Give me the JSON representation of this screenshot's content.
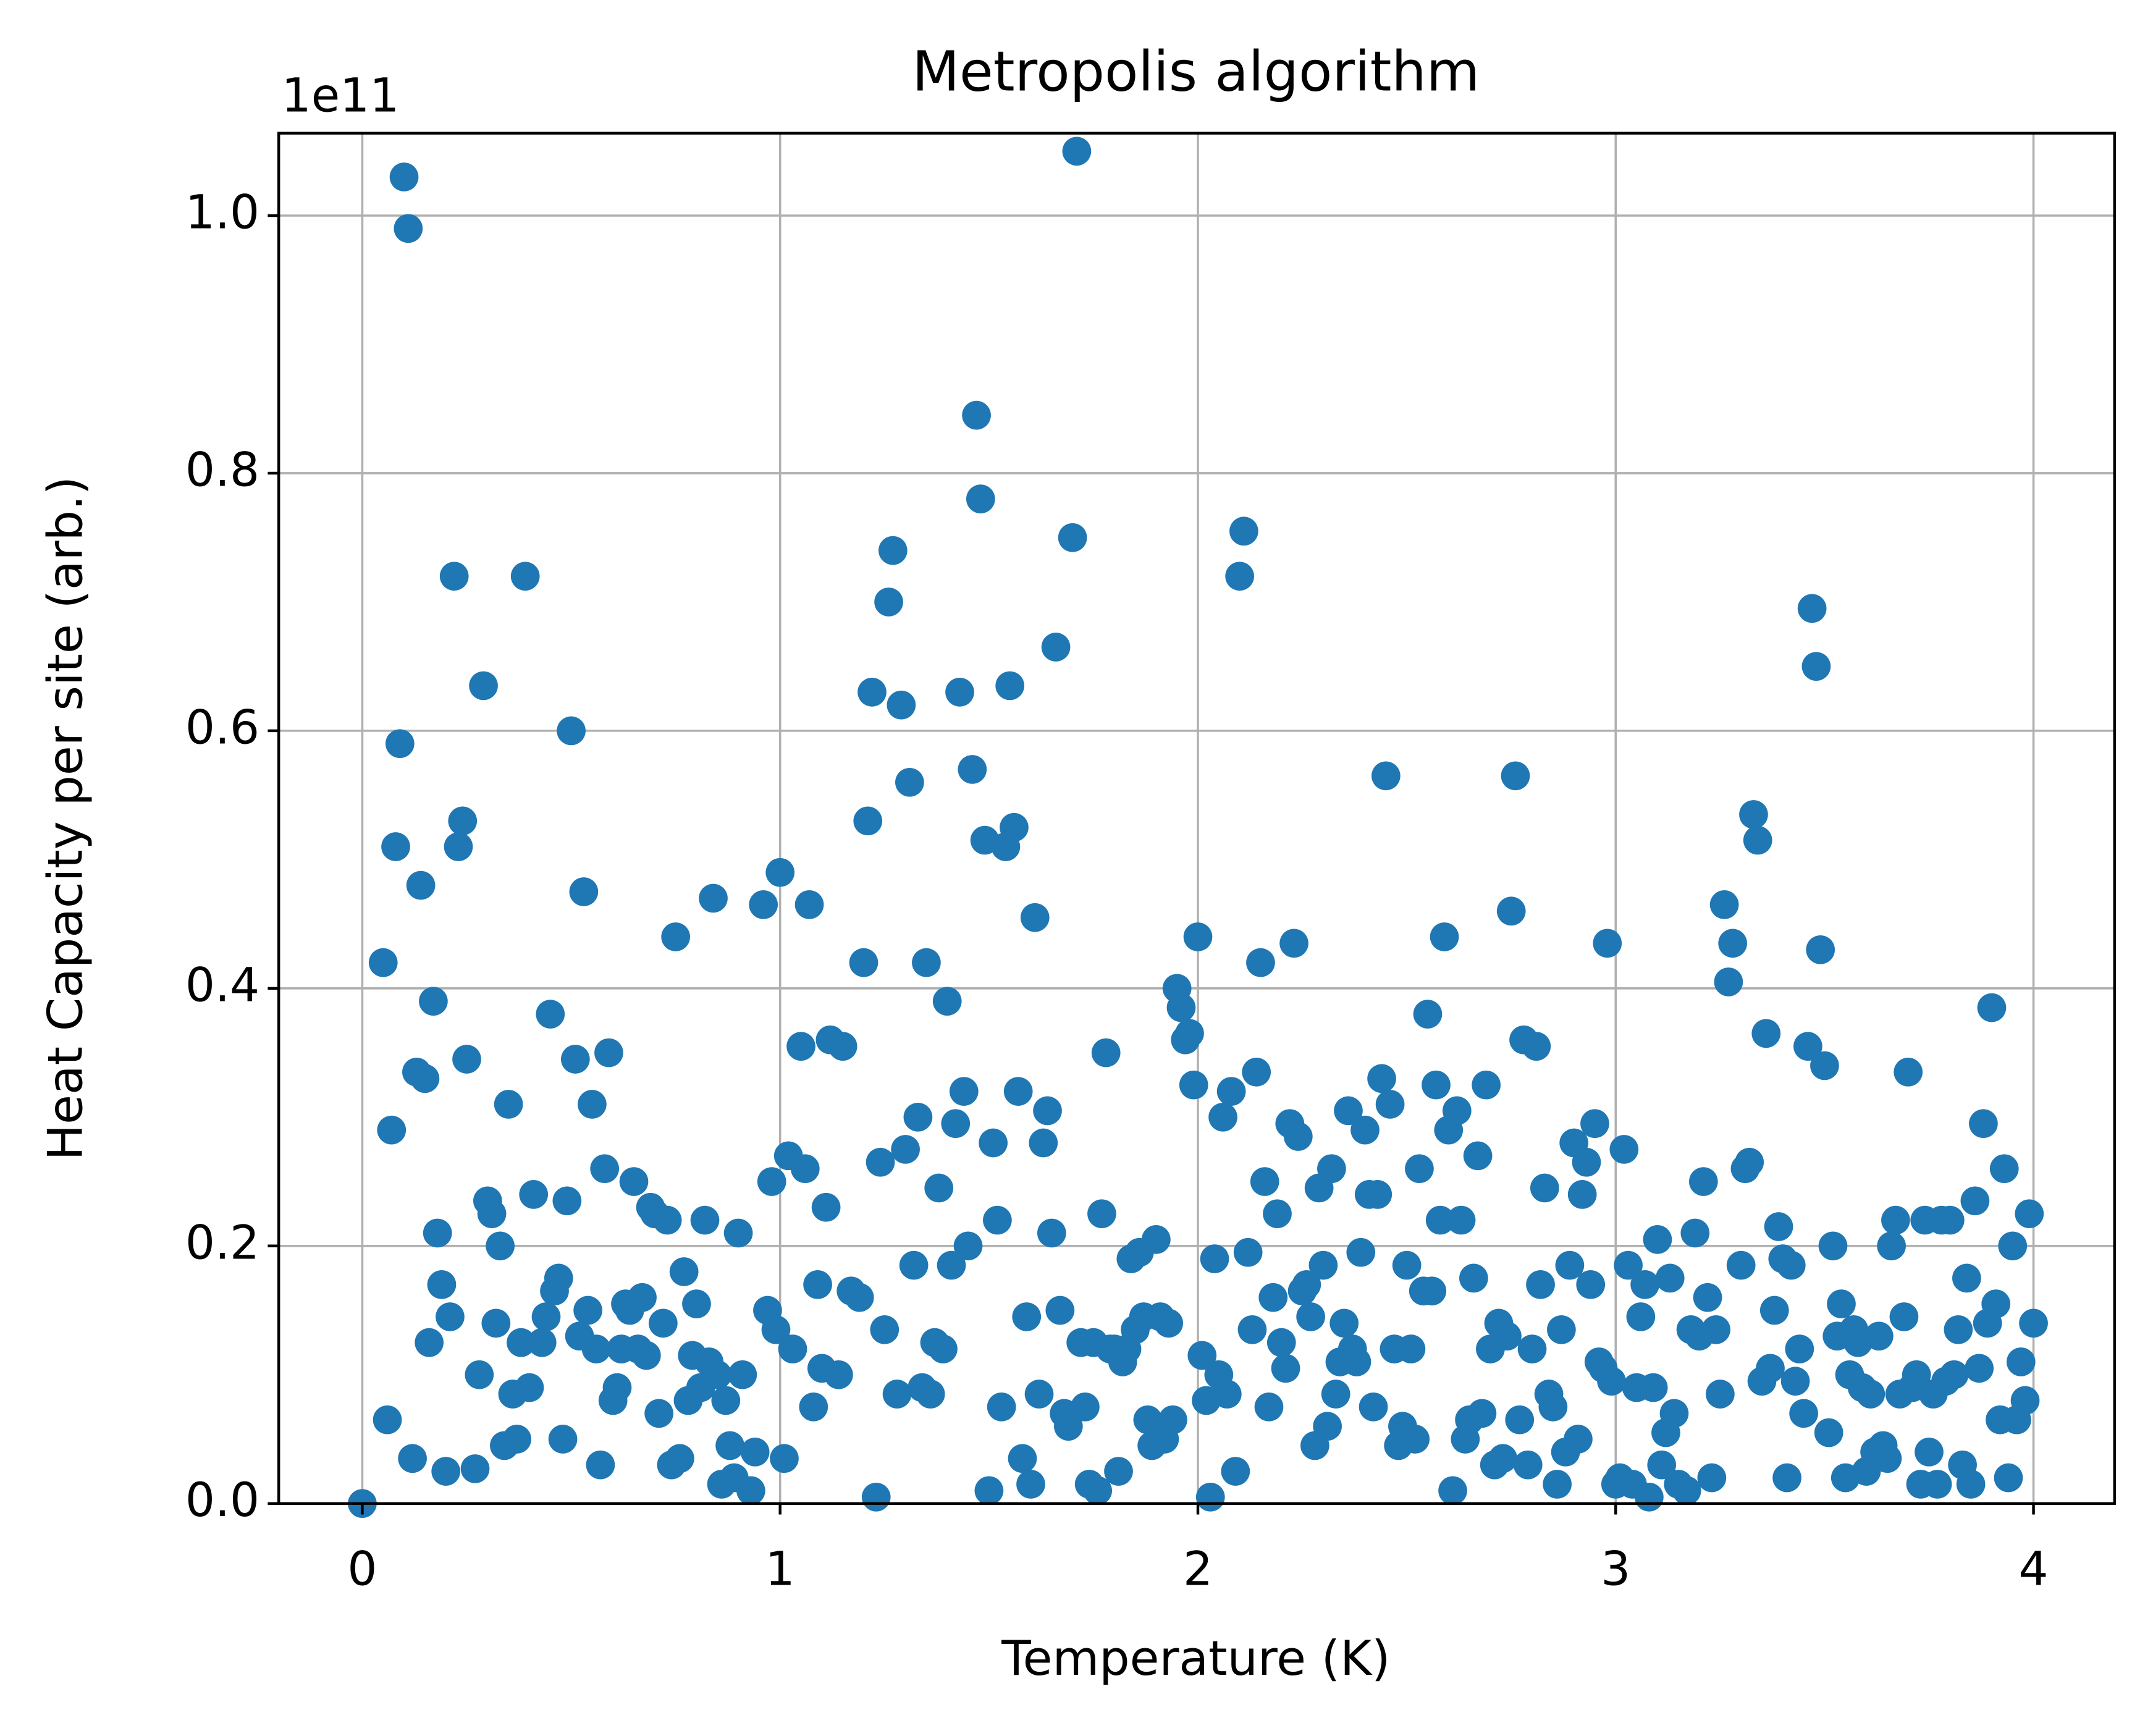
{
  "chart_data": {
    "type": "scatter",
    "title": "Metropolis algorithm",
    "x_label": "Temperature (K)",
    "y_label": "Heat Capacity per site (arb.)",
    "y_offset_label": "1e11",
    "color": "#1f77b4",
    "grid": true,
    "xlim": [
      -0.2,
      4.194
    ],
    "ylim": [
      0,
      1.064
    ],
    "xticks": [
      0,
      1,
      2,
      3,
      4
    ],
    "yticks": [
      {
        "value": 0,
        "label": "0.0"
      },
      0.2,
      0.4,
      0.6,
      0.8,
      {
        "value": 1,
        "label": "1.0"
      }
    ],
    "x": [
      0,
      0.05,
      0.06,
      0.07,
      0.08,
      0.09,
      0.1,
      0.11,
      0.12,
      0.13,
      0.14,
      0.15,
      0.16,
      0.17,
      0.18,
      0.19,
      0.2,
      0.21,
      0.22,
      0.23,
      0.24,
      0.25,
      0.27,
      0.28,
      0.29,
      0.3,
      0.31,
      0.32,
      0.33,
      0.34,
      0.35,
      0.36,
      0.37,
      0.38,
      0.39,
      0.4,
      0.41,
      0.43,
      0.44,
      0.45,
      0.46,
      0.47,
      0.48,
      0.49,
      0.5,
      0.51,
      0.52,
      0.53,
      0.54,
      0.55,
      0.56,
      0.57,
      0.58,
      0.59,
      0.6,
      0.61,
      0.62,
      0.63,
      0.64,
      0.65,
      0.66,
      0.67,
      0.68,
      0.69,
      0.7,
      0.71,
      0.72,
      0.73,
      0.74,
      0.75,
      0.76,
      0.77,
      0.78,
      0.79,
      0.8,
      0.81,
      0.82,
      0.83,
      0.84,
      0.85,
      0.86,
      0.87,
      0.88,
      0.89,
      0.9,
      0.91,
      0.93,
      0.94,
      0.96,
      0.97,
      0.98,
      0.99,
      1.0,
      1.01,
      1.02,
      1.03,
      1.05,
      1.06,
      1.07,
      1.08,
      1.09,
      1.1,
      1.11,
      1.12,
      1.14,
      1.15,
      1.17,
      1.19,
      1.2,
      1.21,
      1.22,
      1.23,
      1.24,
      1.25,
      1.26,
      1.27,
      1.28,
      1.29,
      1.3,
      1.31,
      1.32,
      1.33,
      1.34,
      1.35,
      1.36,
      1.37,
      1.38,
      1.39,
      1.4,
      1.41,
      1.42,
      1.43,
      1.44,
      1.45,
      1.46,
      1.47,
      1.48,
      1.49,
      1.5,
      1.51,
      1.52,
      1.53,
      1.54,
      1.55,
      1.56,
      1.57,
      1.58,
      1.59,
      1.6,
      1.61,
      1.62,
      1.63,
      1.64,
      1.65,
      1.66,
      1.67,
      1.68,
      1.69,
      1.7,
      1.71,
      1.72,
      1.73,
      1.74,
      1.75,
      1.76,
      1.77,
      1.78,
      1.79,
      1.8,
      1.81,
      1.82,
      1.83,
      1.84,
      1.85,
      1.86,
      1.87,
      1.88,
      1.89,
      1.9,
      1.91,
      1.92,
      1.93,
      1.94,
      1.95,
      1.96,
      1.97,
      1.98,
      1.99,
      2.0,
      2.01,
      2.02,
      2.03,
      2.04,
      2.05,
      2.06,
      2.07,
      2.08,
      2.09,
      2.1,
      2.11,
      2.12,
      2.13,
      2.14,
      2.15,
      2.16,
      2.17,
      2.18,
      2.19,
      2.2,
      2.21,
      2.22,
      2.23,
      2.24,
      2.25,
      2.26,
      2.27,
      2.28,
      2.29,
      2.3,
      2.31,
      2.32,
      2.33,
      2.34,
      2.35,
      2.36,
      2.37,
      2.38,
      2.39,
      2.4,
      2.41,
      2.42,
      2.43,
      2.44,
      2.45,
      2.46,
      2.47,
      2.48,
      2.49,
      2.5,
      2.51,
      2.52,
      2.53,
      2.54,
      2.55,
      2.56,
      2.57,
      2.58,
      2.59,
      2.6,
      2.61,
      2.62,
      2.63,
      2.64,
      2.65,
      2.66,
      2.67,
      2.68,
      2.69,
      2.7,
      2.71,
      2.72,
      2.73,
      2.74,
      2.75,
      2.76,
      2.77,
      2.78,
      2.79,
      2.8,
      2.81,
      2.82,
      2.83,
      2.84,
      2.85,
      2.86,
      2.87,
      2.88,
      2.89,
      2.9,
      2.91,
      2.92,
      2.93,
      2.94,
      2.95,
      2.96,
      2.97,
      2.98,
      2.99,
      3.0,
      3.01,
      3.02,
      3.03,
      3.04,
      3.05,
      3.06,
      3.07,
      3.08,
      3.09,
      3.1,
      3.11,
      3.12,
      3.13,
      3.14,
      3.15,
      3.17,
      3.18,
      3.19,
      3.2,
      3.21,
      3.22,
      3.23,
      3.24,
      3.25,
      3.26,
      3.27,
      3.28,
      3.3,
      3.31,
      3.32,
      3.33,
      3.34,
      3.35,
      3.36,
      3.37,
      3.38,
      3.39,
      3.4,
      3.41,
      3.42,
      3.43,
      3.44,
      3.45,
      3.46,
      3.47,
      3.48,
      3.49,
      3.5,
      3.51,
      3.52,
      3.53,
      3.54,
      3.55,
      3.56,
      3.57,
      3.58,
      3.59,
      3.6,
      3.61,
      3.62,
      3.63,
      3.64,
      3.65,
      3.66,
      3.67,
      3.68,
      3.69,
      3.7,
      3.71,
      3.72,
      3.73,
      3.74,
      3.75,
      3.76,
      3.77,
      3.78,
      3.79,
      3.8,
      3.81,
      3.82,
      3.83,
      3.84,
      3.85,
      3.86,
      3.87,
      3.88,
      3.89,
      3.9,
      3.91,
      3.92,
      3.93,
      3.94,
      3.95,
      3.96,
      3.97,
      3.98,
      3.99,
      4.0
    ],
    "values": [
      0,
      0.42,
      0.065,
      0.29,
      0.51,
      0.59,
      1.03,
      0.99,
      0.035,
      0.335,
      0.48,
      0.33,
      0.125,
      0.39,
      0.21,
      0.17,
      0.025,
      0.145,
      0.72,
      0.51,
      0.53,
      0.345,
      0.027,
      0.1,
      0.635,
      0.235,
      0.225,
      0.14,
      0.2,
      0.045,
      0.31,
      0.085,
      0.05,
      0.125,
      0.72,
      0.09,
      0.24,
      0.125,
      0.145,
      0.38,
      0.165,
      0.175,
      0.05,
      0.235,
      0.6,
      0.345,
      0.13,
      0.475,
      0.15,
      0.31,
      0.12,
      0.03,
      0.26,
      0.35,
      0.08,
      0.09,
      0.12,
      0.155,
      0.15,
      0.25,
      0.12,
      0.16,
      0.115,
      0.23,
      0.225,
      0.07,
      0.14,
      0.22,
      0.03,
      0.44,
      0.035,
      0.18,
      0.08,
      0.115,
      0.155,
      0.09,
      0.22,
      0.11,
      0.47,
      0.1,
      0.015,
      0.08,
      0.045,
      0.02,
      0.21,
      0.1,
      0.01,
      0.04,
      0.465,
      0.15,
      0.25,
      0.135,
      0.49,
      0.035,
      0.27,
      0.12,
      0.355,
      0.26,
      0.465,
      0.075,
      0.17,
      0.105,
      0.23,
      0.36,
      0.1,
      0.355,
      0.165,
      0.16,
      0.42,
      0.53,
      0.63,
      0.005,
      0.265,
      0.135,
      0.7,
      0.74,
      0.085,
      0.62,
      0.275,
      0.56,
      0.185,
      0.3,
      0.09,
      0.42,
      0.085,
      0.125,
      0.245,
      0.12,
      0.39,
      0.185,
      0.295,
      0.63,
      0.32,
      0.2,
      0.57,
      0.845,
      0.78,
      0.515,
      0.01,
      0.28,
      0.22,
      0.075,
      0.51,
      0.635,
      0.525,
      0.32,
      0.035,
      0.145,
      0.015,
      0.455,
      0.085,
      0.28,
      0.305,
      0.21,
      0.665,
      0.15,
      0.07,
      0.06,
      0.75,
      1.05,
      0.125,
      0.075,
      0.015,
      0.125,
      0.01,
      0.225,
      0.35,
      0.12,
      0.12,
      0.025,
      0.11,
      0.12,
      0.19,
      0.135,
      0.195,
      0.145,
      0.065,
      0.045,
      0.205,
      0.145,
      0.05,
      0.14,
      0.065,
      0.4,
      0.385,
      0.36,
      0.365,
      0.325,
      0.44,
      0.115,
      0.08,
      0.005,
      0.19,
      0.1,
      0.3,
      0.085,
      0.32,
      0.025,
      0.72,
      0.755,
      0.195,
      0.135,
      0.335,
      0.42,
      0.25,
      0.075,
      0.16,
      0.225,
      0.125,
      0.105,
      0.295,
      0.435,
      0.285,
      0.165,
      0.17,
      0.145,
      0.045,
      0.245,
      0.185,
      0.06,
      0.26,
      0.085,
      0.11,
      0.14,
      0.305,
      0.12,
      0.11,
      0.195,
      0.29,
      0.24,
      0.075,
      0.24,
      0.33,
      0.565,
      0.31,
      0.12,
      0.045,
      0.06,
      0.185,
      0.12,
      0.05,
      0.26,
      0.165,
      0.38,
      0.165,
      0.325,
      0.22,
      0.44,
      0.29,
      0.01,
      0.305,
      0.22,
      0.05,
      0.065,
      0.175,
      0.27,
      0.07,
      0.325,
      0.12,
      0.03,
      0.14,
      0.035,
      0.13,
      0.46,
      0.565,
      0.065,
      0.36,
      0.03,
      0.12,
      0.355,
      0.17,
      0.245,
      0.085,
      0.075,
      0.015,
      0.135,
      0.04,
      0.185,
      0.28,
      0.05,
      0.24,
      0.265,
      0.17,
      0.295,
      0.11,
      0.105,
      0.435,
      0.095,
      0.015,
      0.02,
      0.275,
      0.185,
      0.015,
      0.09,
      0.145,
      0.17,
      0.005,
      0.09,
      0.205,
      0.03,
      0.055,
      0.175,
      0.07,
      0.015,
      0.01,
      0.135,
      0.21,
      0.13,
      0.25,
      0.16,
      0.02,
      0.135,
      0.085,
      0.465,
      0.405,
      0.435,
      0.185,
      0.26,
      0.265,
      0.535,
      0.515,
      0.095,
      0.365,
      0.105,
      0.15,
      0.215,
      0.19,
      0.02,
      0.185,
      0.095,
      0.12,
      0.07,
      0.355,
      0.695,
      0.65,
      0.43,
      0.34,
      0.055,
      0.2,
      0.13,
      0.155,
      0.02,
      0.1,
      0.135,
      0.125,
      0.09,
      0.025,
      0.085,
      0.04,
      0.13,
      0.045,
      0.035,
      0.2,
      0.22,
      0.085,
      0.145,
      0.335,
      0.09,
      0.1,
      0.015,
      0.22,
      0.04,
      0.085,
      0.015,
      0.22,
      0.095,
      0.22,
      0.1,
      0.135,
      0.03,
      0.175,
      0.015,
      0.235,
      0.105,
      0.295,
      0.14,
      0.385,
      0.155,
      0.065,
      0.26,
      0.02,
      0.2,
      0.065,
      0.11,
      0.08,
      0.225,
      0.14
    ]
  }
}
